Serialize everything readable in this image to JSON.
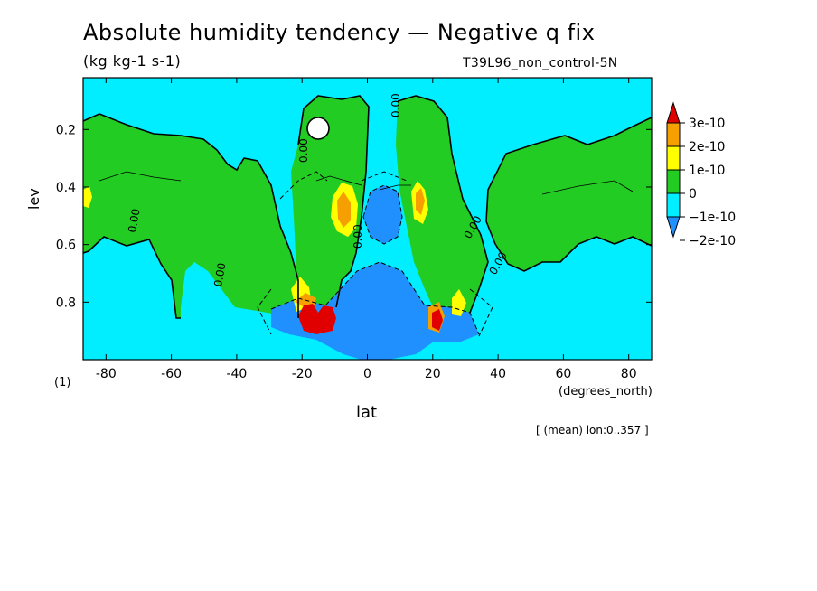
{
  "header": {
    "title": "Absolute humidity tendency — Negative q fix",
    "units": "(kg kg-1 s-1)",
    "run": "T39L96_non_control-5N"
  },
  "footer": {
    "mean_note": "[ (mean) lon:0..357 ]",
    "sub_index": "(1)"
  },
  "colors": {
    "c_3e10": "#e00000",
    "c_2e10": "#f5a000",
    "c_1e10": "#ffff00",
    "c_0": "#22cc22",
    "c_m1e10": "#00eeff",
    "c_m2e10": "#2090ff"
  },
  "chart_data": {
    "type": "heatmap",
    "xlabel": "lat",
    "x_unit": "(degrees_north)",
    "ylabel": "lev",
    "xlim": [
      -87,
      87
    ],
    "ylim": [
      1.0,
      0.02
    ],
    "xticks": [
      -80,
      -60,
      -40,
      -20,
      0,
      20,
      40,
      60,
      80
    ],
    "yticks": [
      0.2,
      0.4,
      0.6,
      0.8
    ],
    "contour_label": "0.00",
    "colorbar": {
      "levels": [
        "3e-10",
        "2e-10",
        "1e-10",
        "0",
        "−1e-10",
        "−2e-10"
      ]
    }
  }
}
